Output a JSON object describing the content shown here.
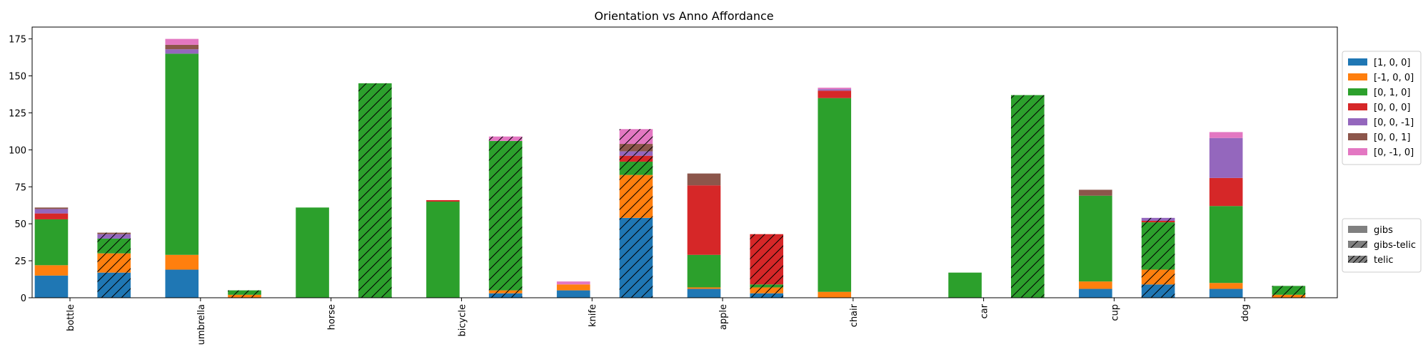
{
  "chart_data": {
    "type": "bar",
    "title": "Orientation vs Anno Affordance",
    "xlabel": "",
    "ylabel": "",
    "ylim": [
      0,
      183
    ],
    "yticks": [
      0,
      25,
      50,
      75,
      100,
      125,
      150,
      175
    ],
    "grid": false,
    "categories": [
      "bottle",
      "umbrella",
      "horse",
      "bicycle",
      "knife",
      "apple",
      "chair",
      "car",
      "cup",
      "dog"
    ],
    "orientation_series": [
      {
        "name": "[1, 0, 0]",
        "color": "#1f77b4"
      },
      {
        "name": "[-1, 0, 0]",
        "color": "#ff7f0e"
      },
      {
        "name": "[0, 1, 0]",
        "color": "#2ca02c"
      },
      {
        "name": "[0, 0, 0]",
        "color": "#d62728"
      },
      {
        "name": "[0, 0, -1]",
        "color": "#9467bd"
      },
      {
        "name": "[0, 0, 1]",
        "color": "#8c564b"
      },
      {
        "name": "[0, -1, 0]",
        "color": "#e377c2"
      }
    ],
    "affordance_legend": [
      {
        "name": "gibs",
        "hatch": "none"
      },
      {
        "name": "gibs-telic",
        "hatch": "single"
      },
      {
        "name": "telic",
        "hatch": "dense"
      }
    ],
    "legend_placement": "right",
    "bars": [
      {
        "category": "bottle",
        "affordance": "gibs",
        "values": [
          15,
          7,
          31,
          4,
          3,
          1,
          0
        ]
      },
      {
        "category": "bottle",
        "affordance": "gibs-telic",
        "values": [
          17,
          13,
          10,
          0,
          3,
          1,
          0
        ]
      },
      {
        "category": "umbrella",
        "affordance": "gibs",
        "values": [
          19,
          10,
          136,
          0,
          3,
          3,
          4
        ]
      },
      {
        "category": "umbrella",
        "affordance": "gibs-telic",
        "values": [
          0,
          2,
          3,
          0,
          0,
          0,
          0
        ]
      },
      {
        "category": "horse",
        "affordance": "gibs",
        "values": [
          0,
          0,
          61,
          0,
          0,
          0,
          0
        ]
      },
      {
        "category": "horse",
        "affordance": "gibs-telic",
        "values": [
          0,
          0,
          145,
          0,
          0,
          0,
          0
        ]
      },
      {
        "category": "bicycle",
        "affordance": "gibs",
        "values": [
          0,
          0,
          65,
          1,
          0,
          0,
          0
        ]
      },
      {
        "category": "bicycle",
        "affordance": "gibs-telic",
        "values": [
          3,
          2,
          101,
          0,
          0,
          0,
          3
        ]
      },
      {
        "category": "knife",
        "affordance": "gibs",
        "values": [
          5,
          4,
          0,
          0,
          0,
          0,
          2
        ]
      },
      {
        "category": "knife",
        "affordance": "gibs-telic",
        "values": [
          54,
          29,
          9,
          4,
          3,
          5,
          10
        ]
      },
      {
        "category": "apple",
        "affordance": "gibs",
        "values": [
          6,
          1,
          22,
          47,
          0,
          8,
          0
        ]
      },
      {
        "category": "apple",
        "affordance": "gibs-telic",
        "values": [
          3,
          4,
          2,
          34,
          0,
          0,
          0
        ]
      },
      {
        "category": "chair",
        "affordance": "gibs",
        "values": [
          0,
          4,
          131,
          5,
          1,
          0,
          1
        ]
      },
      {
        "category": "chair",
        "affordance": "gibs-telic",
        "values": [
          0,
          0,
          0,
          0,
          0,
          0,
          0
        ]
      },
      {
        "category": "car",
        "affordance": "gibs",
        "values": [
          0,
          0,
          17,
          0,
          0,
          0,
          0
        ]
      },
      {
        "category": "car",
        "affordance": "gibs-telic",
        "values": [
          0,
          0,
          137,
          0,
          0,
          0,
          0
        ]
      },
      {
        "category": "cup",
        "affordance": "gibs",
        "values": [
          6,
          5,
          58,
          0,
          0,
          4,
          0
        ]
      },
      {
        "category": "cup",
        "affordance": "gibs-telic",
        "values": [
          9,
          10,
          32,
          1,
          2,
          0,
          0
        ]
      },
      {
        "category": "dog",
        "affordance": "gibs",
        "values": [
          6,
          4,
          52,
          19,
          27,
          0,
          4
        ]
      },
      {
        "category": "dog",
        "affordance": "gibs-telic",
        "values": [
          0,
          2,
          6,
          0,
          0,
          0,
          0
        ]
      }
    ]
  }
}
